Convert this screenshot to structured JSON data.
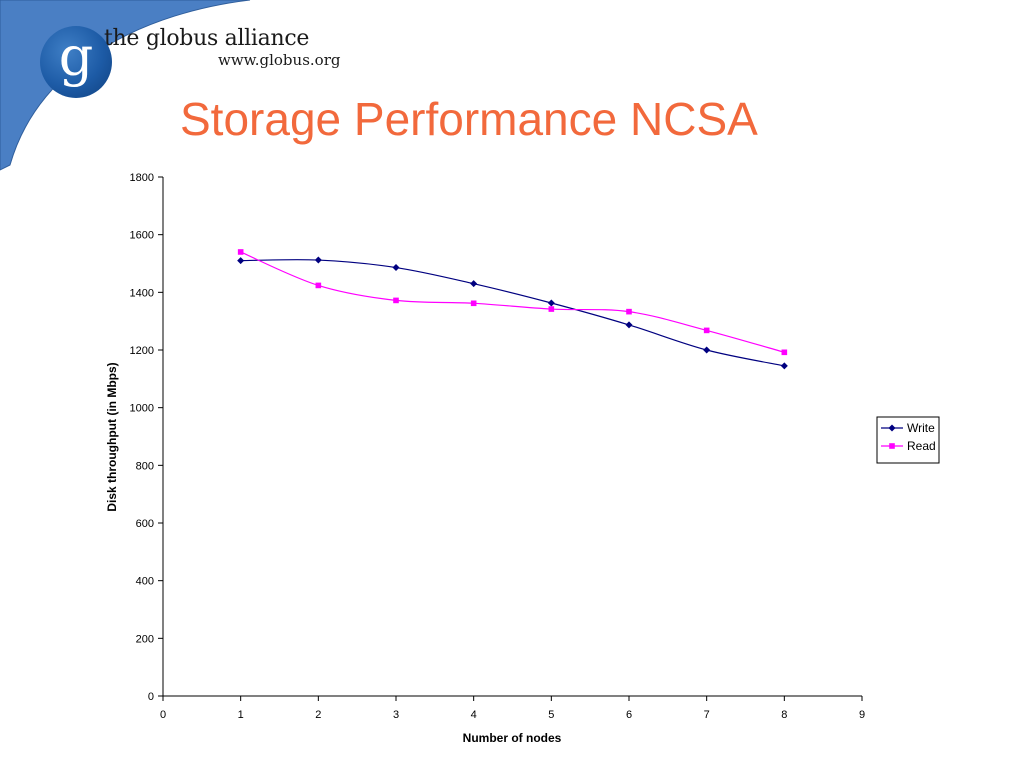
{
  "brand": {
    "name": "the globus alliance",
    "url": "www.globus.org",
    "logo_letter": "g",
    "arc_color": "#4a7fc4"
  },
  "slide": {
    "title": "Storage Performance NCSA",
    "title_color": "#f2693c"
  },
  "chart_data": {
    "type": "line",
    "xlabel": "Number of nodes",
    "ylabel": "Disk throughput (in Mbps)",
    "xlim": [
      0,
      9
    ],
    "ylim": [
      0,
      1800
    ],
    "x_ticks": [
      0,
      1,
      2,
      3,
      4,
      5,
      6,
      7,
      8,
      9
    ],
    "y_ticks": [
      0,
      200,
      400,
      600,
      800,
      1000,
      1200,
      1400,
      1600,
      1800
    ],
    "grid": false,
    "legend_position": "right",
    "smoothed": true,
    "series": [
      {
        "name": "Write",
        "color": "#000080",
        "marker": "diamond",
        "x": [
          1,
          2,
          3,
          4,
          5,
          6,
          7,
          8
        ],
        "y": [
          1510,
          1512,
          1486,
          1430,
          1363,
          1287,
          1200,
          1145
        ]
      },
      {
        "name": "Read",
        "color": "#ff00ff",
        "marker": "square",
        "x": [
          1,
          2,
          3,
          4,
          5,
          6,
          7,
          8
        ],
        "y": [
          1540,
          1424,
          1372,
          1362,
          1342,
          1333,
          1268,
          1192
        ]
      }
    ]
  }
}
